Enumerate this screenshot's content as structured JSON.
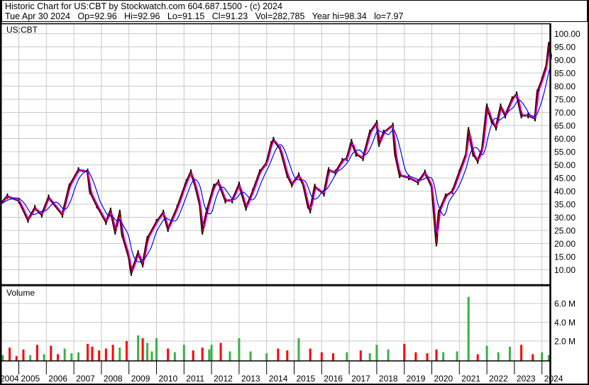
{
  "header": {
    "title": "Historic Chart for US:CBT by Stockwatch.com 604.687.1500 - (c) 2024",
    "quote": "Tue Apr 30 2024   Op=92.96   Hi=92.96   Lo=91.15   Cl=91.23   Vol=282,785   Year hi=98.34   lo=7.97"
  },
  "chart_data": {
    "type": "line",
    "symbol": "US:CBT",
    "volume_label": "Volume",
    "price_ylim": [
      7,
      104
    ],
    "price_ticks": [
      "100.00",
      "95.00",
      "90.00",
      "85.00",
      "80.00",
      "75.00",
      "70.00",
      "65.00",
      "60.00",
      "55.00",
      "50.00",
      "45.00",
      "40.00",
      "35.00",
      "30.00",
      "25.00",
      "20.00",
      "15.00",
      "10.00"
    ],
    "volume_ticks": [
      "6.0 M",
      "4.0 M",
      "2.0 M"
    ],
    "x_ticks": [
      "2004",
      "2005",
      "2006",
      "2007",
      "2008",
      "2009",
      "2010",
      "2011",
      "2012",
      "2013",
      "2014",
      "2015",
      "2016",
      "2017",
      "2018",
      "2019",
      "2020",
      "2021",
      "2022",
      "2023",
      "2024"
    ],
    "grid": true,
    "colors": {
      "price": "#000000",
      "up": "#3cb043",
      "down": "#ff0000",
      "ma_short": "#ff00ff",
      "ma_long": "#0000ff"
    },
    "price": [
      [
        "2004-05",
        35
      ],
      [
        "2004-08",
        38
      ],
      [
        "2005-01",
        36.4
      ],
      [
        "2005-05",
        29
      ],
      [
        "2005-08",
        33.6
      ],
      [
        "2005-11",
        31
      ],
      [
        "2006-02",
        37.6
      ],
      [
        "2006-08",
        31
      ],
      [
        "2006-11",
        41.8
      ],
      [
        "2007-03",
        48
      ],
      [
        "2007-07",
        47.5
      ],
      [
        "2007-08",
        39.9
      ],
      [
        "2007-11",
        34.5
      ],
      [
        "2008-03",
        28.2
      ],
      [
        "2008-05",
        32.6
      ],
      [
        "2008-07",
        24.5
      ],
      [
        "2008-09",
        31.8
      ],
      [
        "2008-10",
        23.6
      ],
      [
        "2009-01",
        14.7
      ],
      [
        "2009-02",
        8.8
      ],
      [
        "2009-05",
        16.4
      ],
      [
        "2009-07",
        12
      ],
      [
        "2009-09",
        21.8
      ],
      [
        "2010-01",
        28.2
      ],
      [
        "2010-04",
        31.8
      ],
      [
        "2010-06",
        25.5
      ],
      [
        "2010-10",
        33.6
      ],
      [
        "2011-02",
        43.4
      ],
      [
        "2011-04",
        47.2
      ],
      [
        "2011-06",
        41.7
      ],
      [
        "2011-08",
        34.5
      ],
      [
        "2011-09",
        24.5
      ],
      [
        "2011-11",
        32.6
      ],
      [
        "2012-02",
        41.7
      ],
      [
        "2012-04",
        43.4
      ],
      [
        "2012-07",
        36.4
      ],
      [
        "2012-10",
        36.4
      ],
      [
        "2013-01",
        42.5
      ],
      [
        "2013-04",
        33.6
      ],
      [
        "2013-07",
        39.9
      ],
      [
        "2013-10",
        47.2
      ],
      [
        "2014-01",
        50.7
      ],
      [
        "2014-03",
        57.9
      ],
      [
        "2014-04",
        59.6
      ],
      [
        "2014-07",
        56
      ],
      [
        "2014-10",
        46.1
      ],
      [
        "2014-12",
        42.5
      ],
      [
        "2015-03",
        46
      ],
      [
        "2015-05",
        42.5
      ],
      [
        "2015-07",
        34.5
      ],
      [
        "2015-08",
        32.6
      ],
      [
        "2015-10",
        41.7
      ],
      [
        "2016-02",
        39
      ],
      [
        "2016-04",
        48
      ],
      [
        "2016-07",
        47.1
      ],
      [
        "2016-10",
        51.5
      ],
      [
        "2016-12",
        52.5
      ],
      [
        "2017-02",
        58.8
      ],
      [
        "2017-04",
        54.2
      ],
      [
        "2017-07",
        52.5
      ],
      [
        "2017-10",
        62.3
      ],
      [
        "2018-01",
        66
      ],
      [
        "2018-02",
        57.9
      ],
      [
        "2018-04",
        62.3
      ],
      [
        "2018-08",
        65
      ],
      [
        "2018-09",
        54.2
      ],
      [
        "2018-11",
        46.1
      ],
      [
        "2019-03",
        45.2
      ],
      [
        "2019-07",
        43.4
      ],
      [
        "2019-10",
        47.1
      ],
      [
        "2020-01",
        41.7
      ],
      [
        "2020-03",
        20
      ],
      [
        "2020-04",
        31.8
      ],
      [
        "2020-07",
        38
      ],
      [
        "2020-10",
        39.9
      ],
      [
        "2021-01",
        47.1
      ],
      [
        "2021-04",
        54.2
      ],
      [
        "2021-05",
        63.3
      ],
      [
        "2021-07",
        54.2
      ],
      [
        "2021-09",
        51.5
      ],
      [
        "2021-11",
        56.1
      ],
      [
        "2022-01",
        72.3
      ],
      [
        "2022-03",
        66.9
      ],
      [
        "2022-05",
        64.2
      ],
      [
        "2022-07",
        72.3
      ],
      [
        "2022-09",
        68.8
      ],
      [
        "2022-12",
        75
      ],
      [
        "2023-02",
        76.9
      ],
      [
        "2023-04",
        68.8
      ],
      [
        "2023-07",
        68.8
      ],
      [
        "2023-10",
        67.7
      ],
      [
        "2023-11",
        77.7
      ],
      [
        "2024-01",
        82.3
      ],
      [
        "2024-03",
        88
      ],
      [
        "2024-04",
        95.8
      ],
      [
        "2024-04-30",
        91.23
      ]
    ],
    "volume_millions": [
      [
        "2004-06",
        0.5
      ],
      [
        "2004-09",
        1.3
      ],
      [
        "2004-12",
        0.4
      ],
      [
        "2005-03",
        1.1
      ],
      [
        "2005-06",
        0.5
      ],
      [
        "2005-09",
        1.6
      ],
      [
        "2005-12",
        0.6
      ],
      [
        "2006-03",
        1.5
      ],
      [
        "2006-06",
        0.6
      ],
      [
        "2006-09",
        1.2
      ],
      [
        "2006-12",
        0.7
      ],
      [
        "2007-03",
        0.8
      ],
      [
        "2007-07",
        1.7
      ],
      [
        "2007-09",
        1.4
      ],
      [
        "2007-12",
        1.0
      ],
      [
        "2008-03",
        1.2
      ],
      [
        "2008-06",
        1.6
      ],
      [
        "2008-09",
        1.3
      ],
      [
        "2008-12",
        2.0
      ],
      [
        "2009-05",
        2.6
      ],
      [
        "2009-07",
        2.3
      ],
      [
        "2009-09",
        1.8
      ],
      [
        "2009-11",
        0.9
      ],
      [
        "2010-01",
        2.3
      ],
      [
        "2010-06",
        1.2
      ],
      [
        "2010-09",
        0.8
      ],
      [
        "2011-01",
        1.6
      ],
      [
        "2011-05",
        1.0
      ],
      [
        "2011-09",
        1.3
      ],
      [
        "2011-12",
        1.1
      ],
      [
        "2012-01",
        1.6
      ],
      [
        "2012-05",
        1.8
      ],
      [
        "2012-09",
        0.9
      ],
      [
        "2013-01",
        2.3
      ],
      [
        "2013-06",
        0.9
      ],
      [
        "2014-01",
        0.7
      ],
      [
        "2014-06",
        1.2
      ],
      [
        "2014-10",
        1.0
      ],
      [
        "2015-03",
        2.3
      ],
      [
        "2015-08",
        1.2
      ],
      [
        "2016-01",
        0.8
      ],
      [
        "2016-06",
        0.7
      ],
      [
        "2016-12",
        0.8
      ],
      [
        "2017-06",
        1.0
      ],
      [
        "2017-10",
        0.7
      ],
      [
        "2018-01",
        1.6
      ],
      [
        "2018-06",
        1.1
      ],
      [
        "2019-01",
        1.7
      ],
      [
        "2019-06",
        0.8
      ],
      [
        "2019-11",
        0.7
      ],
      [
        "2020-03",
        1.1
      ],
      [
        "2020-06",
        0.8
      ],
      [
        "2020-12",
        0.9
      ],
      [
        "2021-05",
        6.7
      ],
      [
        "2021-09",
        0.6
      ],
      [
        "2022-01",
        1.5
      ],
      [
        "2022-06",
        0.8
      ],
      [
        "2022-11",
        1.4
      ],
      [
        "2023-04",
        1.6
      ],
      [
        "2023-09",
        0.6
      ],
      [
        "2024-01",
        0.8
      ],
      [
        "2024-04",
        0.5
      ]
    ]
  }
}
